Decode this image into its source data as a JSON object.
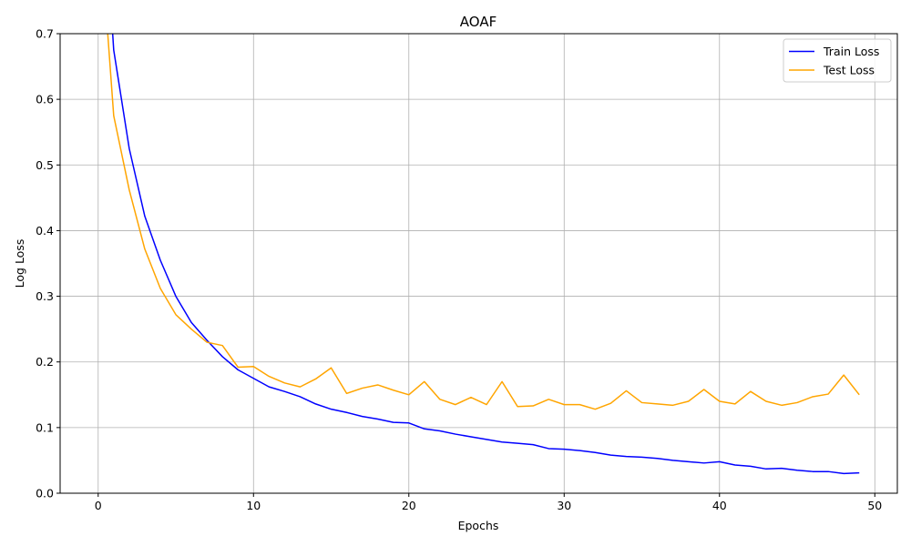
{
  "chart_data": {
    "type": "line",
    "title": "AOAF",
    "xlabel": "Epochs",
    "ylabel": "Log Loss",
    "xlim": [
      -2.45,
      51.45
    ],
    "ylim": [
      0,
      0.7
    ],
    "x_ticks": [
      0,
      10,
      20,
      30,
      40,
      50
    ],
    "y_ticks": [
      0.0,
      0.1,
      0.2,
      0.3,
      0.4,
      0.5,
      0.6,
      0.7
    ],
    "grid": true,
    "legend_position": "top-right",
    "x": [
      0,
      1,
      2,
      3,
      4,
      5,
      6,
      7,
      8,
      9,
      10,
      11,
      12,
      13,
      14,
      15,
      16,
      17,
      18,
      19,
      20,
      21,
      22,
      23,
      24,
      25,
      26,
      27,
      28,
      29,
      30,
      31,
      32,
      33,
      34,
      35,
      36,
      37,
      38,
      39,
      40,
      41,
      42,
      43,
      44,
      45,
      46,
      47,
      48,
      49
    ],
    "series": [
      {
        "name": "Train Loss",
        "color": "#0000ff",
        "values": [
          1.05,
          0.675,
          0.525,
          0.422,
          0.355,
          0.3,
          0.26,
          0.233,
          0.208,
          0.188,
          0.175,
          0.162,
          0.155,
          0.147,
          0.136,
          0.128,
          0.123,
          0.117,
          0.113,
          0.108,
          0.107,
          0.098,
          0.095,
          0.09,
          0.086,
          0.082,
          0.078,
          0.076,
          0.074,
          0.068,
          0.067,
          0.065,
          0.062,
          0.058,
          0.056,
          0.055,
          0.053,
          0.05,
          0.048,
          0.046,
          0.048,
          0.043,
          0.041,
          0.037,
          0.038,
          0.035,
          0.033,
          0.033,
          0.03,
          0.031
        ]
      },
      {
        "name": "Test Loss",
        "color": "#ffa500",
        "values": [
          0.9,
          0.575,
          0.462,
          0.372,
          0.312,
          0.272,
          0.25,
          0.23,
          0.225,
          0.192,
          0.193,
          0.178,
          0.168,
          0.162,
          0.174,
          0.191,
          0.152,
          0.16,
          0.165,
          0.157,
          0.15,
          0.17,
          0.143,
          0.135,
          0.146,
          0.135,
          0.17,
          0.132,
          0.133,
          0.143,
          0.135,
          0.135,
          0.128,
          0.137,
          0.156,
          0.138,
          0.136,
          0.134,
          0.14,
          0.158,
          0.14,
          0.136,
          0.155,
          0.14,
          0.134,
          0.138,
          0.147,
          0.151,
          0.18,
          0.15
        ]
      }
    ]
  }
}
